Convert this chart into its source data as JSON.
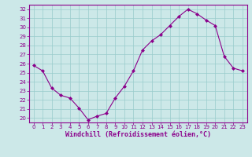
{
  "x": [
    0,
    1,
    2,
    3,
    4,
    5,
    6,
    7,
    8,
    9,
    10,
    11,
    12,
    13,
    14,
    15,
    16,
    17,
    18,
    19,
    20,
    21,
    22,
    23
  ],
  "y": [
    25.8,
    25.2,
    23.3,
    22.5,
    22.2,
    21.1,
    19.8,
    20.2,
    20.5,
    22.2,
    23.5,
    25.2,
    27.5,
    28.5,
    29.2,
    30.2,
    31.2,
    32.0,
    31.5,
    30.8,
    30.2,
    26.8,
    25.5,
    25.2
  ],
  "line_color": "#8B008B",
  "marker": "D",
  "marker_size": 2.0,
  "bg_color": "#cce8e8",
  "grid_color": "#99cccc",
  "xlabel": "Windchill (Refroidissement éolien,°C)",
  "ylim": [
    19.5,
    32.5
  ],
  "xlim": [
    -0.5,
    23.5
  ],
  "yticks": [
    20,
    21,
    22,
    23,
    24,
    25,
    26,
    27,
    28,
    29,
    30,
    31,
    32
  ],
  "xticks": [
    0,
    1,
    2,
    3,
    4,
    5,
    6,
    7,
    8,
    9,
    10,
    11,
    12,
    13,
    14,
    15,
    16,
    17,
    18,
    19,
    20,
    21,
    22,
    23
  ],
  "tick_fontsize": 5.0,
  "label_fontsize": 6.0,
  "linewidth": 0.8
}
